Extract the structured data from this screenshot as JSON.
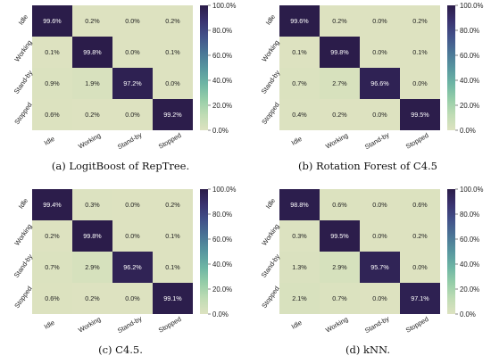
{
  "chart_data": [
    {
      "type": "heatmap",
      "caption": "(a)  LogitBoost of RepTree.",
      "rows": [
        "Idle",
        "Working",
        "Stand-by",
        "Stopped"
      ],
      "columns": [
        "Idle",
        "Working",
        "Stand-by",
        "Stopped"
      ],
      "values": [
        [
          99.6,
          0.2,
          0.0,
          0.2
        ],
        [
          0.1,
          99.8,
          0.0,
          0.1
        ],
        [
          0.9,
          1.9,
          97.2,
          0.0
        ],
        [
          0.6,
          0.2,
          0.0,
          99.2
        ]
      ],
      "cell_labels": [
        [
          "99.6%",
          "0.2%",
          "0.0%",
          "0.2%"
        ],
        [
          "0.1%",
          "99.8%",
          "0.0%",
          "0.1%"
        ],
        [
          "0.9%",
          "1.9%",
          "97.2%",
          "0.0%"
        ],
        [
          "0.6%",
          "0.2%",
          "0.0%",
          "99.2%"
        ]
      ],
      "colorbar": {
        "min": 0,
        "max": 100,
        "ticks": [
          "100.0%",
          "80.0%",
          "60.0%",
          "40.0%",
          "20.0%",
          "0.0%"
        ]
      }
    },
    {
      "type": "heatmap",
      "caption": "(b)  Rotation Forest of C4.5",
      "rows": [
        "Idle",
        "Working",
        "Stand-by",
        "Stopped"
      ],
      "columns": [
        "Idle",
        "Working",
        "Stand-by",
        "Stopped"
      ],
      "values": [
        [
          99.6,
          0.2,
          0.0,
          0.2
        ],
        [
          0.1,
          99.8,
          0.0,
          0.1
        ],
        [
          0.7,
          2.7,
          96.6,
          0.0
        ],
        [
          0.4,
          0.2,
          0.0,
          99.5
        ]
      ],
      "cell_labels": [
        [
          "99.6%",
          "0.2%",
          "0.0%",
          "0.2%"
        ],
        [
          "0.1%",
          "99.8%",
          "0.0%",
          "0.1%"
        ],
        [
          "0.7%",
          "2.7%",
          "96.6%",
          "0.0%"
        ],
        [
          "0.4%",
          "0.2%",
          "0.0%",
          "99.5%"
        ]
      ],
      "colorbar": {
        "min": 0,
        "max": 100,
        "ticks": [
          "100.0%",
          "80.0%",
          "60.0%",
          "40.0%",
          "20.0%",
          "0.0%"
        ]
      }
    },
    {
      "type": "heatmap",
      "caption": "(c)  C4.5.",
      "rows": [
        "Idle",
        "Working",
        "Stand-by",
        "Stopped"
      ],
      "columns": [
        "Idle",
        "Working",
        "Stand-by",
        "Stopped"
      ],
      "values": [
        [
          99.4,
          0.3,
          0.0,
          0.2
        ],
        [
          0.2,
          99.8,
          0.0,
          0.1
        ],
        [
          0.7,
          2.9,
          96.2,
          0.1
        ],
        [
          0.6,
          0.2,
          0.0,
          99.1
        ]
      ],
      "cell_labels": [
        [
          "99.4%",
          "0.3%",
          "0.0%",
          "0.2%"
        ],
        [
          "0.2%",
          "99.8%",
          "0.0%",
          "0.1%"
        ],
        [
          "0.7%",
          "2.9%",
          "96.2%",
          "0.1%"
        ],
        [
          "0.6%",
          "0.2%",
          "0.0%",
          "99.1%"
        ]
      ],
      "colorbar": {
        "min": 0,
        "max": 100,
        "ticks": [
          "100.0%",
          "80.0%",
          "60.0%",
          "40.0%",
          "20.0%",
          "0.0%"
        ]
      }
    },
    {
      "type": "heatmap",
      "caption": "(d)  kNN.",
      "rows": [
        "Idle",
        "Working",
        "Stand-by",
        "Stopped"
      ],
      "columns": [
        "Idle",
        "Working",
        "Stand-by",
        "Stopped"
      ],
      "values": [
        [
          98.8,
          0.6,
          0.0,
          0.6
        ],
        [
          0.3,
          99.5,
          0.0,
          0.2
        ],
        [
          1.3,
          2.9,
          95.7,
          0.0
        ],
        [
          2.1,
          0.7,
          0.0,
          97.1
        ]
      ],
      "cell_labels": [
        [
          "98.8%",
          "0.6%",
          "0.0%",
          "0.6%"
        ],
        [
          "0.3%",
          "99.5%",
          "0.0%",
          "0.2%"
        ],
        [
          "1.3%",
          "2.9%",
          "95.7%",
          "0.0%"
        ],
        [
          "2.1%",
          "0.7%",
          "0.0%",
          "97.1%"
        ]
      ],
      "colorbar": {
        "min": 0,
        "max": 100,
        "ticks": [
          "100.0%",
          "80.0%",
          "60.0%",
          "40.0%",
          "20.0%",
          "0.0%"
        ]
      }
    }
  ],
  "colors": {
    "low": "#dde2c0",
    "stops": [
      "#dde2c0",
      "#bfdcb4",
      "#95cda8",
      "#6db5a4",
      "#57969f",
      "#4a7596",
      "#42528a",
      "#3a3370",
      "#2b1c49"
    ],
    "text_dark": "#222222",
    "text_light": "#ffffff"
  }
}
